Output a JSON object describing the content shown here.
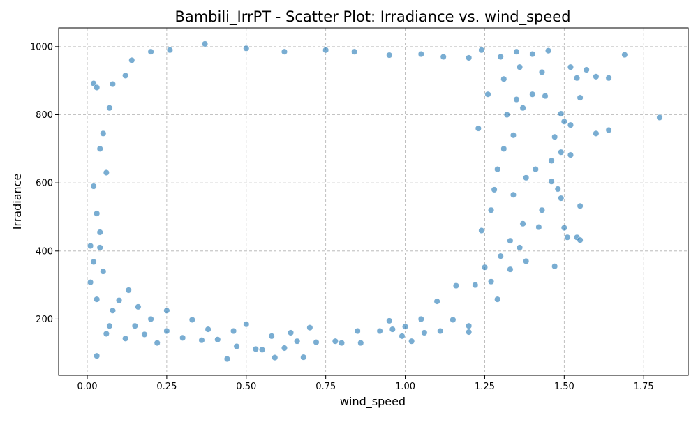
{
  "chart_data": {
    "type": "scatter",
    "title": "Bambili_IrrPT - Scatter Plot: Irradiance vs. wind_speed",
    "xlabel": "wind_speed",
    "ylabel": "Irradiance",
    "xlim": [
      -0.09,
      1.89
    ],
    "ylim": [
      35,
      1055
    ],
    "xticks": [
      0.0,
      0.25,
      0.5,
      0.75,
      1.0,
      1.25,
      1.5,
      1.75
    ],
    "xtick_labels": [
      "0.00",
      "0.25",
      "0.50",
      "0.75",
      "1.00",
      "1.25",
      "1.50",
      "1.75"
    ],
    "yticks": [
      200,
      400,
      600,
      800,
      1000
    ],
    "ytick_labels": [
      "200",
      "400",
      "600",
      "800",
      "1000"
    ],
    "grid": true,
    "marker_color": "#1f77b4",
    "marker_alpha": 0.6,
    "series": [
      {
        "points": [
          [
            0.03,
            92
          ],
          [
            0.44,
            83
          ],
          [
            0.59,
            87
          ],
          [
            0.68,
            88
          ],
          [
            0.53,
            112
          ],
          [
            0.55,
            110
          ],
          [
            0.62,
            115
          ],
          [
            0.47,
            120
          ],
          [
            0.66,
            135
          ],
          [
            0.72,
            132
          ],
          [
            0.78,
            135
          ],
          [
            0.8,
            130
          ],
          [
            0.86,
            130
          ],
          [
            0.92,
            165
          ],
          [
            0.96,
            170
          ],
          [
            0.99,
            150
          ],
          [
            1.02,
            135
          ],
          [
            1.06,
            160
          ],
          [
            1.11,
            165
          ],
          [
            1.2,
            162
          ],
          [
            1.05,
            200
          ],
          [
            1.15,
            198
          ],
          [
            1.2,
            180
          ],
          [
            1.29,
            258
          ],
          [
            1.27,
            310
          ],
          [
            1.33,
            346
          ],
          [
            1.38,
            370
          ],
          [
            1.42,
            470
          ],
          [
            1.47,
            355
          ],
          [
            1.5,
            468
          ],
          [
            1.51,
            440
          ],
          [
            1.54,
            440
          ],
          [
            1.55,
            432
          ],
          [
            1.55,
            532
          ],
          [
            1.46,
            604
          ],
          [
            1.49,
            555
          ],
          [
            1.43,
            520
          ],
          [
            1.48,
            582
          ],
          [
            1.36,
            410
          ],
          [
            1.34,
            565
          ],
          [
            1.49,
            690
          ],
          [
            1.52,
            682
          ],
          [
            1.47,
            735
          ],
          [
            1.5,
            780
          ],
          [
            1.52,
            770
          ],
          [
            1.49,
            803
          ],
          [
            1.55,
            850
          ],
          [
            1.6,
            745
          ],
          [
            1.64,
            755
          ],
          [
            1.54,
            908
          ],
          [
            1.57,
            932
          ],
          [
            1.6,
            912
          ],
          [
            1.64,
            908
          ],
          [
            1.52,
            940
          ],
          [
            1.69,
            976
          ],
          [
            1.8,
            792
          ],
          [
            1.45,
            988
          ],
          [
            1.4,
            978
          ],
          [
            1.35,
            985
          ],
          [
            1.3,
            970
          ],
          [
            1.24,
            990
          ],
          [
            1.43,
            925
          ],
          [
            1.4,
            860
          ],
          [
            1.37,
            820
          ],
          [
            1.44,
            855
          ],
          [
            1.46,
            665
          ],
          [
            1.41,
            640
          ],
          [
            1.38,
            615
          ],
          [
            0.12,
            143
          ],
          [
            0.18,
            155
          ],
          [
            0.22,
            130
          ],
          [
            0.3,
            145
          ],
          [
            0.36,
            138
          ],
          [
            0.41,
            140
          ],
          [
            0.07,
            180
          ],
          [
            0.06,
            157
          ],
          [
            0.01,
            308
          ],
          [
            0.01,
            415
          ],
          [
            0.02,
            892
          ],
          [
            0.03,
            880
          ],
          [
            0.08,
            890
          ],
          [
            0.12,
            915
          ],
          [
            0.14,
            960
          ],
          [
            0.2,
            985
          ],
          [
            0.26,
            990
          ],
          [
            0.37,
            1008
          ],
          [
            0.5,
            995
          ],
          [
            0.62,
            985
          ],
          [
            0.75,
            990
          ],
          [
            0.84,
            985
          ],
          [
            0.95,
            975
          ],
          [
            1.05,
            978
          ],
          [
            1.12,
            970
          ],
          [
            1.2,
            967
          ],
          [
            0.05,
            745
          ],
          [
            0.02,
            590
          ],
          [
            0.03,
            510
          ],
          [
            0.04,
            455
          ],
          [
            0.02,
            368
          ],
          [
            0.05,
            340
          ],
          [
            0.03,
            258
          ],
          [
            0.08,
            225
          ],
          [
            0.1,
            255
          ],
          [
            0.16,
            236
          ],
          [
            0.13,
            285
          ],
          [
            0.25,
            225
          ],
          [
            0.33,
            198
          ],
          [
            0.38,
            170
          ],
          [
            1.0,
            178
          ],
          [
            0.95,
            195
          ],
          [
            1.1,
            252
          ],
          [
            1.16,
            298
          ],
          [
            1.22,
            300
          ],
          [
            1.25,
            352
          ],
          [
            1.3,
            385
          ],
          [
            1.33,
            430
          ],
          [
            1.37,
            480
          ],
          [
            1.29,
            640
          ],
          [
            1.31,
            700
          ],
          [
            1.34,
            740
          ],
          [
            1.32,
            800
          ],
          [
            1.35,
            845
          ],
          [
            1.31,
            905
          ],
          [
            1.36,
            940
          ],
          [
            0.06,
            630
          ],
          [
            0.04,
            700
          ],
          [
            0.07,
            820
          ],
          [
            0.04,
            410
          ],
          [
            1.26,
            860
          ],
          [
            1.23,
            760
          ],
          [
            1.27,
            520
          ],
          [
            1.24,
            460
          ],
          [
            1.28,
            580
          ],
          [
            0.58,
            150
          ],
          [
            0.64,
            160
          ],
          [
            0.7,
            175
          ],
          [
            0.85,
            165
          ],
          [
            0.46,
            165
          ],
          [
            0.5,
            185
          ],
          [
            0.25,
            165
          ],
          [
            0.2,
            200
          ],
          [
            0.15,
            180
          ]
        ]
      }
    ]
  }
}
